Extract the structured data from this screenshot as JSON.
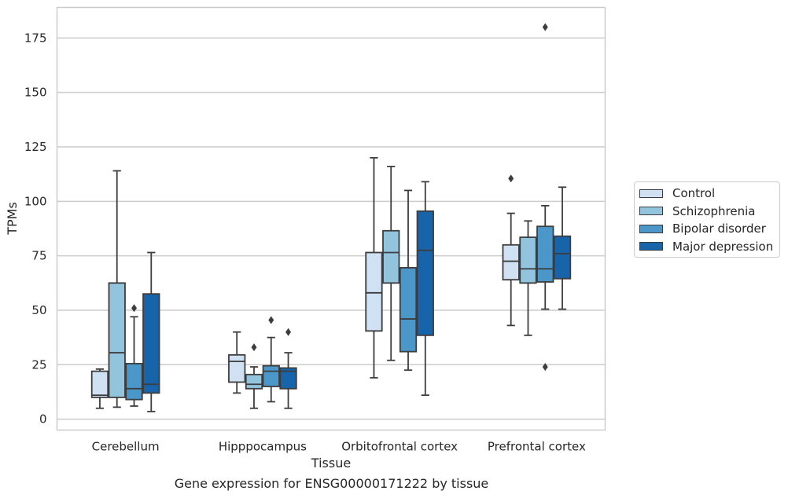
{
  "chart_data": {
    "type": "box",
    "title": "",
    "caption": "Gene expression for ENSG00000171222 by tissue",
    "xlabel": "Tissue",
    "ylabel": "TPMs",
    "ylim": [
      -5,
      189
    ],
    "yticks": [
      0,
      25,
      50,
      75,
      100,
      125,
      150,
      175
    ],
    "categories": [
      "Cerebellum",
      "Hipppocampus",
      "Orbitofrontal cortex",
      "Prefrontal cortex"
    ],
    "grid": true,
    "legend_position": "right",
    "series": [
      {
        "name": "Control",
        "color": "#cfe1f2",
        "boxes": [
          {
            "whislo": 5,
            "q1": 10,
            "med": 11,
            "q3": 22,
            "whishi": 23,
            "fliers": []
          },
          {
            "whislo": 12,
            "q1": 17,
            "med": 26.5,
            "q3": 29.5,
            "whishi": 40,
            "fliers": []
          },
          {
            "whislo": 19,
            "q1": 40.5,
            "med": 58,
            "q3": 76.5,
            "whishi": 120,
            "fliers": []
          },
          {
            "whislo": 43,
            "q1": 64,
            "med": 72.5,
            "q3": 80,
            "whishi": 94.5,
            "fliers": [
              110.5
            ]
          }
        ]
      },
      {
        "name": "Schizophrenia",
        "color": "#93c4de",
        "boxes": [
          {
            "whislo": 5.5,
            "q1": 10,
            "med": 30.5,
            "q3": 62.5,
            "whishi": 114,
            "fliers": []
          },
          {
            "whislo": 5,
            "q1": 14,
            "med": 16,
            "q3": 20.5,
            "whishi": 24,
            "fliers": [
              33
            ]
          },
          {
            "whislo": 27,
            "q1": 62.5,
            "med": 76.5,
            "q3": 86.5,
            "whishi": 116,
            "fliers": []
          },
          {
            "whislo": 38.5,
            "q1": 62.5,
            "med": 69,
            "q3": 83.5,
            "whishi": 91,
            "fliers": []
          }
        ]
      },
      {
        "name": "Bipolar disorder",
        "color": "#4b97c9",
        "boxes": [
          {
            "whislo": 6,
            "q1": 9,
            "med": 14,
            "q3": 25.5,
            "whishi": 47,
            "fliers": [
              51
            ]
          },
          {
            "whislo": 8,
            "q1": 15,
            "med": 22,
            "q3": 24.5,
            "whishi": 37.5,
            "fliers": [
              45.5
            ]
          },
          {
            "whislo": 22.5,
            "q1": 31,
            "med": 46,
            "q3": 69.5,
            "whishi": 105,
            "fliers": []
          },
          {
            "whislo": 50.5,
            "q1": 63,
            "med": 69,
            "q3": 88.5,
            "whishi": 98,
            "fliers": [
              180,
              24
            ]
          }
        ]
      },
      {
        "name": "Major depression",
        "color": "#1764ab",
        "boxes": [
          {
            "whislo": 3.5,
            "q1": 12,
            "med": 16,
            "q3": 57.5,
            "whishi": 76.5,
            "fliers": []
          },
          {
            "whislo": 5,
            "q1": 14,
            "med": 22,
            "q3": 23.5,
            "whishi": 30.5,
            "fliers": [
              40
            ]
          },
          {
            "whislo": 11,
            "q1": 38.5,
            "med": 77.5,
            "q3": 95.5,
            "whishi": 109,
            "fliers": []
          },
          {
            "whislo": 50.5,
            "q1": 64.5,
            "med": 76,
            "q3": 84,
            "whishi": 106.5,
            "fliers": []
          }
        ]
      }
    ]
  }
}
